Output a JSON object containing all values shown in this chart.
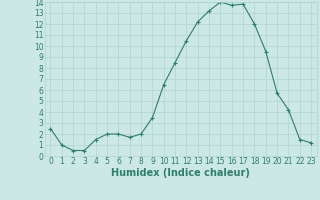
{
  "x": [
    0,
    1,
    2,
    3,
    4,
    5,
    6,
    7,
    8,
    9,
    10,
    11,
    12,
    13,
    14,
    15,
    16,
    17,
    18,
    19,
    20,
    21,
    22,
    23
  ],
  "y": [
    2.5,
    1.0,
    0.5,
    0.5,
    1.5,
    2.0,
    2.0,
    1.7,
    2.0,
    3.5,
    6.5,
    8.5,
    10.5,
    12.2,
    13.2,
    14.0,
    13.7,
    13.8,
    12.0,
    9.5,
    5.7,
    4.2,
    1.5,
    1.2
  ],
  "line_color": "#2e7d6e",
  "marker": "+",
  "bg_color": "#cce8e4",
  "grid_major_color": "#b0d4cf",
  "grid_minor_color": "#c4deda",
  "xlabel": "Humidex (Indice chaleur)",
  "ylim": [
    0,
    14
  ],
  "xlim": [
    -0.5,
    23.5
  ],
  "yticks": [
    0,
    1,
    2,
    3,
    4,
    5,
    6,
    7,
    8,
    9,
    10,
    11,
    12,
    13,
    14
  ],
  "xticks": [
    0,
    1,
    2,
    3,
    4,
    5,
    6,
    7,
    8,
    9,
    10,
    11,
    12,
    13,
    14,
    15,
    16,
    17,
    18,
    19,
    20,
    21,
    22,
    23
  ],
  "tick_label_fontsize": 5.5,
  "xlabel_fontsize": 7.0,
  "linewidth": 0.8,
  "markersize": 3,
  "markeredgewidth": 0.8
}
